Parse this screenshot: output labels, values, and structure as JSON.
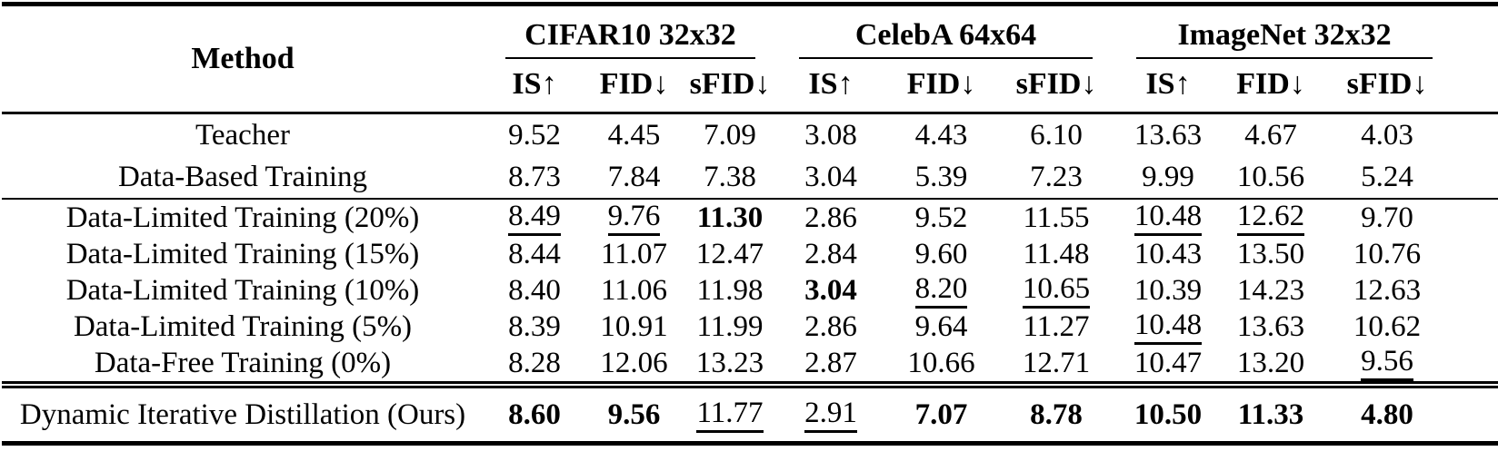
{
  "colors": {
    "background": "#ffffff",
    "text": "#000000",
    "rule": "#000000"
  },
  "table": {
    "columns": {
      "method_header": "Method",
      "groups": [
        {
          "label": "CIFAR10 32x32",
          "metrics": [
            "IS↑",
            "FID↓",
            "sFID↓"
          ]
        },
        {
          "label": "CelebA 64x64",
          "metrics": [
            "IS↑",
            "FID↓",
            "sFID↓"
          ]
        },
        {
          "label": "ImageNet 32x32",
          "metrics": [
            "IS↑",
            "FID↓",
            "sFID↓"
          ]
        }
      ]
    },
    "sections": [
      {
        "name": "reference",
        "rows": [
          {
            "method": "Teacher",
            "values": [
              {
                "text": "9.52"
              },
              {
                "text": "4.45"
              },
              {
                "text": "7.09"
              },
              {
                "text": "3.08"
              },
              {
                "text": "4.43"
              },
              {
                "text": "6.10"
              },
              {
                "text": "13.63"
              },
              {
                "text": "4.67"
              },
              {
                "text": "4.03"
              }
            ]
          },
          {
            "method": "Data-Based Training",
            "values": [
              {
                "text": "8.73"
              },
              {
                "text": "7.84"
              },
              {
                "text": "7.38"
              },
              {
                "text": "3.04"
              },
              {
                "text": "5.39"
              },
              {
                "text": "7.23"
              },
              {
                "text": "9.99"
              },
              {
                "text": "10.56"
              },
              {
                "text": "5.24"
              }
            ]
          }
        ]
      },
      {
        "name": "baselines",
        "rows": [
          {
            "method": "Data-Limited Training (20%)",
            "values": [
              {
                "text": "8.49",
                "emphasis": "underline"
              },
              {
                "text": "9.76",
                "emphasis": "underline"
              },
              {
                "text": "11.30",
                "emphasis": "bold"
              },
              {
                "text": "2.86"
              },
              {
                "text": "9.52"
              },
              {
                "text": "11.55"
              },
              {
                "text": "10.48",
                "emphasis": "underline"
              },
              {
                "text": "12.62",
                "emphasis": "underline"
              },
              {
                "text": "9.70"
              }
            ]
          },
          {
            "method": "Data-Limited Training (15%)",
            "values": [
              {
                "text": "8.44"
              },
              {
                "text": "11.07"
              },
              {
                "text": "12.47"
              },
              {
                "text": "2.84"
              },
              {
                "text": "9.60"
              },
              {
                "text": "11.48"
              },
              {
                "text": "10.43"
              },
              {
                "text": "13.50"
              },
              {
                "text": "10.76"
              }
            ]
          },
          {
            "method": "Data-Limited Training (10%)",
            "values": [
              {
                "text": "8.40"
              },
              {
                "text": "11.06"
              },
              {
                "text": "11.98"
              },
              {
                "text": "3.04",
                "emphasis": "bold"
              },
              {
                "text": "8.20",
                "emphasis": "underline"
              },
              {
                "text": "10.65",
                "emphasis": "underline"
              },
              {
                "text": "10.39"
              },
              {
                "text": "14.23"
              },
              {
                "text": "12.63"
              }
            ]
          },
          {
            "method": "Data-Limited Training (5%)",
            "values": [
              {
                "text": "8.39"
              },
              {
                "text": "10.91"
              },
              {
                "text": "11.99"
              },
              {
                "text": "2.86"
              },
              {
                "text": "9.64"
              },
              {
                "text": "11.27"
              },
              {
                "text": "10.48",
                "emphasis": "underline"
              },
              {
                "text": "13.63"
              },
              {
                "text": "10.62"
              }
            ]
          },
          {
            "method": "Data-Free Training (0%)",
            "values": [
              {
                "text": "8.28"
              },
              {
                "text": "12.06"
              },
              {
                "text": "13.23"
              },
              {
                "text": "2.87"
              },
              {
                "text": "10.66"
              },
              {
                "text": "12.71"
              },
              {
                "text": "10.47"
              },
              {
                "text": "13.20"
              },
              {
                "text": "9.56",
                "emphasis": "underline"
              }
            ]
          }
        ]
      },
      {
        "name": "ours",
        "rows": [
          {
            "method": "Dynamic Iterative Distillation (Ours)",
            "values": [
              {
                "text": "8.60",
                "emphasis": "bold"
              },
              {
                "text": "9.56",
                "emphasis": "bold"
              },
              {
                "text": "11.77",
                "emphasis": "underline"
              },
              {
                "text": "2.91",
                "emphasis": "underline"
              },
              {
                "text": "7.07",
                "emphasis": "bold"
              },
              {
                "text": "8.78",
                "emphasis": "bold"
              },
              {
                "text": "10.50",
                "emphasis": "bold"
              },
              {
                "text": "11.33",
                "emphasis": "bold"
              },
              {
                "text": "4.80",
                "emphasis": "bold"
              }
            ]
          }
        ]
      }
    ]
  }
}
